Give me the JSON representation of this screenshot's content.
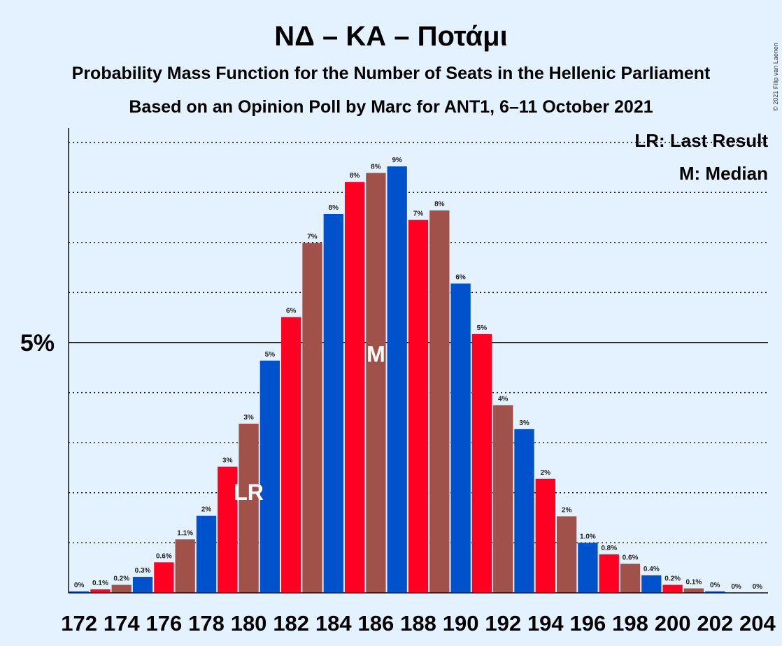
{
  "chart_data": {
    "type": "bar",
    "title": "ΝΔ – ΚΑ – Ποτάμι",
    "subtitle_1": "Probability Mass Function for the Number of Seats in the Hellenic Parliament",
    "subtitle_2": "Based on an Opinion Poll by Marc for ANT1, 6–11 October 2021",
    "credit": "© 2021 Filip van Laenen",
    "legend": {
      "lr": "LR: Last Result",
      "m": "M: Median",
      "placement": "top-right"
    },
    "ytick_label": "5%",
    "ytick_value": 5,
    "ylim": [
      0,
      9.3
    ],
    "grid": true,
    "grid_step": 1,
    "colors": [
      "#0052cc",
      "#ff0022",
      "#a0514a"
    ],
    "x": [
      172,
      173,
      174,
      175,
      176,
      177,
      178,
      179,
      180,
      181,
      182,
      183,
      184,
      185,
      186,
      187,
      188,
      189,
      190,
      191,
      192,
      193,
      194,
      195,
      196,
      197,
      198,
      199,
      200,
      201,
      202,
      203,
      204
    ],
    "values": [
      0.03,
      0.07,
      0.16,
      0.32,
      0.61,
      1.07,
      1.54,
      2.52,
      3.38,
      4.64,
      5.51,
      6.99,
      7.57,
      8.21,
      8.39,
      8.52,
      7.45,
      7.64,
      6.18,
      5.17,
      3.75,
      3.27,
      2.28,
      1.53,
      1.0,
      0.77,
      0.58,
      0.35,
      0.16,
      0.09,
      0.03,
      0.0,
      0.0
    ],
    "data_labels": [
      "0%",
      "0.1%",
      "0.2%",
      "0.3%",
      "0.6%",
      "1.1%",
      "2%",
      "3%",
      "3%",
      "5%",
      "6%",
      "7%",
      "8%",
      "8%",
      "8%",
      "9%",
      "7%",
      "8%",
      "6%",
      "5%",
      "4%",
      "3%",
      "2%",
      "2%",
      "1.0%",
      "0.8%",
      "0.6%",
      "0.4%",
      "0.2%",
      "0.1%",
      "0%",
      "0%",
      "0%"
    ],
    "xtick_labels": [
      "172",
      "174",
      "176",
      "178",
      "180",
      "182",
      "184",
      "186",
      "188",
      "190",
      "192",
      "194",
      "196",
      "198",
      "200",
      "202",
      "204"
    ],
    "last_result": {
      "seat": 180,
      "label": "LR"
    },
    "median": {
      "seat": 186,
      "label": "M"
    }
  }
}
